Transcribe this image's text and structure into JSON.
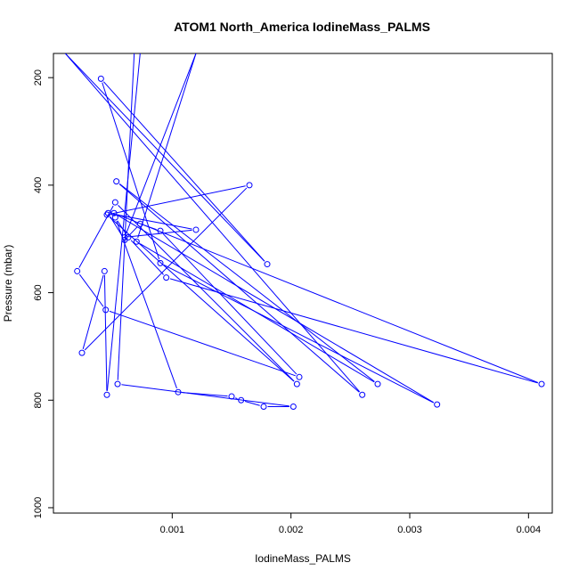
{
  "chart_data": {
    "type": "line",
    "title": "ATOM1 North_America IodineMass_PALMS",
    "xlabel": "IodineMass_PALMS",
    "ylabel": "Pressure (mbar)",
    "xlim": [
      0.0,
      0.0042
    ],
    "ylim": [
      1010,
      155
    ],
    "y_reversed": true,
    "x_ticks": [
      0.001,
      0.002,
      0.003,
      0.004
    ],
    "x_tick_labels": [
      "0.001",
      "0.002",
      "0.003",
      "0.004"
    ],
    "y_ticks": [
      200,
      400,
      600,
      800,
      1000
    ],
    "y_tick_labels": [
      "200",
      "400",
      "600",
      "800",
      "1000"
    ],
    "grid": false,
    "legend": "none",
    "series_color": "#0000ff",
    "series": [
      {
        "x": [
          0.00073,
          0.00045,
          0.00043,
          0.00024,
          0.00165,
          0.00045,
          0.00205,
          0.00052,
          0.0002,
          0.00044,
          0.00207,
          0.0009,
          0.00073,
          0.0006,
          0.00046,
          0.0012,
          0.0006,
          0.0012,
          0.0007,
          0.00273,
          0.00053,
          0.0026,
          0.0001,
          0.0018,
          0.0004,
          0.0009,
          0.00323,
          0.00051,
          0.00411,
          0.00095,
          0.00063,
          0.00052,
          0.00105,
          0.0015,
          0.00158,
          0.00177,
          0.00202,
          0.00054,
          0.00068
        ],
        "y": [
          155,
          790,
          560,
          712,
          400,
          455,
          770,
          432,
          560,
          632,
          757,
          485,
          472,
          502,
          452,
          483,
          497,
          155,
          505,
          770,
          393,
          790,
          155,
          547,
          202,
          545,
          808,
          452,
          770,
          572,
          497,
          460,
          785,
          793,
          800,
          812,
          812,
          770,
          155
        ]
      }
    ]
  }
}
